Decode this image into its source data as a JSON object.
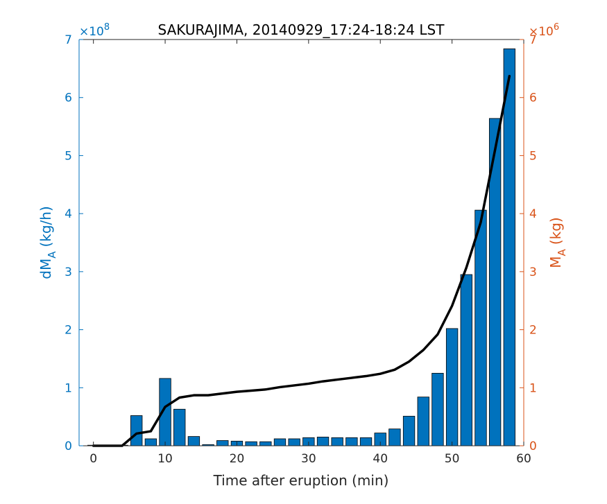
{
  "chart_data": {
    "type": "bar",
    "title": "SAKURAJIMA, 20140929_17:24-18:24 LST",
    "xlabel": "Time after eruption (min)",
    "ylabel_left_main": "dM",
    "ylabel_left_sub": "A",
    "ylabel_left_unit": "(kg/h)",
    "ylabel_right_main": "M",
    "ylabel_right_sub": "A",
    "ylabel_right_unit": "(kg)",
    "left_exponent_base": "×10",
    "left_exponent": "8",
    "right_exponent_base": "×10",
    "right_exponent": "6",
    "xlim": [
      -2,
      60
    ],
    "ylim_left": [
      0,
      7
    ],
    "ylim_right": [
      0,
      7
    ],
    "xticks": [
      0,
      10,
      20,
      30,
      40,
      50,
      60
    ],
    "yticks_left": [
      0,
      1,
      2,
      3,
      4,
      5,
      6,
      7
    ],
    "yticks_right": [
      0,
      1,
      2,
      3,
      4,
      5,
      6,
      7
    ],
    "bar_color": "#0072BD",
    "line_color": "#000000",
    "right_axis_color": "#D95319",
    "bars": {
      "name": "dM_A",
      "x": [
        0,
        2,
        4,
        6,
        8,
        10,
        12,
        14,
        16,
        18,
        20,
        22,
        24,
        26,
        28,
        30,
        32,
        34,
        36,
        38,
        40,
        42,
        44,
        46,
        48,
        50,
        52,
        54,
        56,
        58
      ],
      "values": [
        0,
        0,
        0,
        0.52,
        0.12,
        1.16,
        0.63,
        0.16,
        0.02,
        0.09,
        0.08,
        0.07,
        0.07,
        0.12,
        0.12,
        0.14,
        0.15,
        0.14,
        0.14,
        0.14,
        0.22,
        0.29,
        0.51,
        0.84,
        1.25,
        2.02,
        2.95,
        4.06,
        5.64,
        6.84
      ]
    },
    "line": {
      "name": "M_A",
      "x": [
        0,
        2,
        4,
        6,
        8,
        10,
        12,
        14,
        16,
        18,
        20,
        22,
        24,
        26,
        28,
        30,
        32,
        34,
        36,
        38,
        40,
        42,
        44,
        46,
        48,
        50,
        52,
        54,
        56,
        58
      ],
      "values": [
        0,
        0,
        0,
        0.21,
        0.25,
        0.67,
        0.83,
        0.87,
        0.87,
        0.9,
        0.93,
        0.95,
        0.97,
        1.01,
        1.04,
        1.07,
        1.11,
        1.14,
        1.17,
        1.2,
        1.24,
        1.31,
        1.45,
        1.65,
        1.92,
        2.41,
        3.07,
        3.85,
        5.1,
        6.37
      ]
    }
  }
}
